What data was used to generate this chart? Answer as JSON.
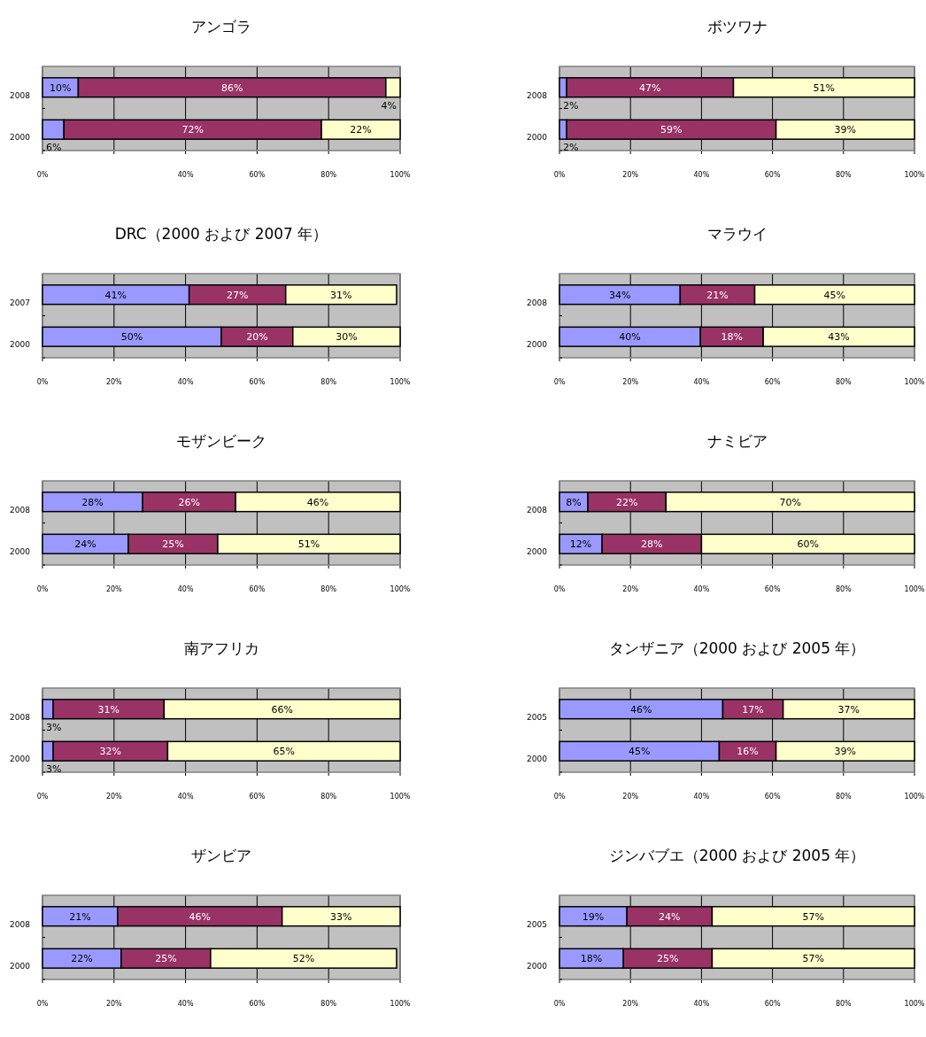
{
  "chart_data": [
    {
      "type": "bar",
      "orientation": "horizontal",
      "stacked": true,
      "grid": "x",
      "title": "アンゴラ",
      "categories": [
        "2008",
        "2000"
      ],
      "xlim": [
        0,
        100
      ],
      "xticks": [
        {
          "value": 0,
          "label": "0%"
        },
        {
          "value": 20,
          "label": null
        },
        {
          "value": 40,
          "label": "40%"
        },
        {
          "value": 60,
          "label": "60%"
        },
        {
          "value": 80,
          "label": "80%"
        },
        {
          "value": 100,
          "label": "100%"
        }
      ],
      "series": [
        {
          "color": "#9999ff",
          "values": [
            10,
            6
          ],
          "value_labels": [
            "10%",
            "6%"
          ]
        },
        {
          "color": "#993366",
          "values": [
            86,
            72
          ],
          "value_labels": [
            "86%",
            "72%"
          ]
        },
        {
          "color": "#ffffcc",
          "values": [
            4,
            22
          ],
          "value_labels": [
            "4%",
            "22%"
          ]
        }
      ]
    },
    {
      "type": "bar",
      "orientation": "horizontal",
      "stacked": true,
      "grid": "x",
      "title": "ボツワナ",
      "categories": [
        "2008",
        "2000"
      ],
      "xlim": [
        0,
        100
      ],
      "xticks": [
        {
          "value": 0,
          "label": "0%"
        },
        {
          "value": 20,
          "label": "20%"
        },
        {
          "value": 40,
          "label": "40%"
        },
        {
          "value": 60,
          "label": "60%"
        },
        {
          "value": 80,
          "label": "80%"
        },
        {
          "value": 100,
          "label": "100%"
        }
      ],
      "series": [
        {
          "color": "#9999ff",
          "values": [
            2,
            2
          ],
          "value_labels": [
            "2%",
            "2%"
          ]
        },
        {
          "color": "#993366",
          "values": [
            47,
            59
          ],
          "value_labels": [
            "47%",
            "59%"
          ]
        },
        {
          "color": "#ffffcc",
          "values": [
            51,
            39
          ],
          "value_labels": [
            "51%",
            "39%"
          ]
        }
      ]
    },
    {
      "type": "bar",
      "orientation": "horizontal",
      "stacked": true,
      "grid": "x",
      "title": "DRC（2000 および 2007 年）",
      "categories": [
        "2007",
        "2000"
      ],
      "xlim": [
        0,
        100
      ],
      "xticks": [
        {
          "value": 0,
          "label": "0%"
        },
        {
          "value": 20,
          "label": "20%"
        },
        {
          "value": 40,
          "label": "40%"
        },
        {
          "value": 60,
          "label": "60%"
        },
        {
          "value": 80,
          "label": "80%"
        },
        {
          "value": 100,
          "label": "100%"
        }
      ],
      "series": [
        {
          "color": "#9999ff",
          "values": [
            41,
            50
          ],
          "value_labels": [
            "41%",
            "50%"
          ]
        },
        {
          "color": "#993366",
          "values": [
            27,
            20
          ],
          "value_labels": [
            "27%",
            "20%"
          ]
        },
        {
          "color": "#ffffcc",
          "values": [
            31,
            30
          ],
          "value_labels": [
            "31%",
            "30%"
          ]
        }
      ]
    },
    {
      "type": "bar",
      "orientation": "horizontal",
      "stacked": true,
      "grid": "x",
      "title": "マラウイ",
      "categories": [
        "2008",
        "2000"
      ],
      "xlim": [
        0,
        100
      ],
      "xticks": [
        {
          "value": 0,
          "label": "0%"
        },
        {
          "value": 20,
          "label": "20%"
        },
        {
          "value": 40,
          "label": "40%"
        },
        {
          "value": 60,
          "label": "60%"
        },
        {
          "value": 80,
          "label": "80%"
        },
        {
          "value": 100,
          "label": "100%"
        }
      ],
      "series": [
        {
          "color": "#9999ff",
          "values": [
            34,
            39.7
          ],
          "value_labels": [
            "34%",
            "40%"
          ]
        },
        {
          "color": "#993366",
          "values": [
            21,
            17.7
          ],
          "value_labels": [
            "21%",
            "18%"
          ]
        },
        {
          "color": "#ffffcc",
          "values": [
            45,
            42.6
          ],
          "value_labels": [
            "45%",
            "43%"
          ]
        }
      ]
    },
    {
      "type": "bar",
      "orientation": "horizontal",
      "stacked": true,
      "grid": "x",
      "title": "モザンビーク",
      "categories": [
        "2008",
        "2000"
      ],
      "xlim": [
        0,
        100
      ],
      "xticks": [
        {
          "value": 0,
          "label": "0%"
        },
        {
          "value": 20,
          "label": "20%"
        },
        {
          "value": 40,
          "label": "40%"
        },
        {
          "value": 60,
          "label": "60%"
        },
        {
          "value": 80,
          "label": "80%"
        },
        {
          "value": 100,
          "label": "100%"
        }
      ],
      "series": [
        {
          "color": "#9999ff",
          "values": [
            28,
            24
          ],
          "value_labels": [
            "28%",
            "24%"
          ]
        },
        {
          "color": "#993366",
          "values": [
            26,
            25
          ],
          "value_labels": [
            "26%",
            "25%"
          ]
        },
        {
          "color": "#ffffcc",
          "values": [
            46,
            51
          ],
          "value_labels": [
            "46%",
            "51%"
          ]
        }
      ]
    },
    {
      "type": "bar",
      "orientation": "horizontal",
      "stacked": true,
      "grid": "x",
      "title": "ナミビア",
      "categories": [
        "2008",
        "2000"
      ],
      "xlim": [
        0,
        100
      ],
      "xticks": [
        {
          "value": 0,
          "label": "0%"
        },
        {
          "value": 20,
          "label": "20%"
        },
        {
          "value": 40,
          "label": "40%"
        },
        {
          "value": 60,
          "label": "60%"
        },
        {
          "value": 80,
          "label": "80%"
        },
        {
          "value": 100,
          "label": "100%"
        }
      ],
      "series": [
        {
          "color": "#9999ff",
          "values": [
            8,
            12
          ],
          "value_labels": [
            "8%",
            "12%"
          ]
        },
        {
          "color": "#993366",
          "values": [
            22,
            28
          ],
          "value_labels": [
            "22%",
            "28%"
          ]
        },
        {
          "color": "#ffffcc",
          "values": [
            70,
            60
          ],
          "value_labels": [
            "70%",
            "60%"
          ]
        }
      ]
    },
    {
      "type": "bar",
      "orientation": "horizontal",
      "stacked": true,
      "grid": "x",
      "title": "南アフリカ",
      "categories": [
        "2008",
        "2000"
      ],
      "xlim": [
        0,
        100
      ],
      "xticks": [
        {
          "value": 0,
          "label": "0%"
        },
        {
          "value": 20,
          "label": "20%"
        },
        {
          "value": 40,
          "label": "40%"
        },
        {
          "value": 60,
          "label": "60%"
        },
        {
          "value": 80,
          "label": "80%"
        },
        {
          "value": 100,
          "label": "100%"
        }
      ],
      "series": [
        {
          "color": "#9999ff",
          "values": [
            3,
            3
          ],
          "value_labels": [
            "3%",
            "3%"
          ]
        },
        {
          "color": "#993366",
          "values": [
            31,
            32
          ],
          "value_labels": [
            "31%",
            "32%"
          ]
        },
        {
          "color": "#ffffcc",
          "values": [
            66,
            65
          ],
          "value_labels": [
            "66%",
            "65%"
          ]
        }
      ]
    },
    {
      "type": "bar",
      "orientation": "horizontal",
      "stacked": true,
      "grid": "x",
      "title": "タンザニア（2000 および 2005 年）",
      "categories": [
        "2005",
        "2000"
      ],
      "xlim": [
        0,
        100
      ],
      "xticks": [
        {
          "value": 0,
          "label": "0%"
        },
        {
          "value": 20,
          "label": "20%"
        },
        {
          "value": 40,
          "label": "40%"
        },
        {
          "value": 60,
          "label": "60%"
        },
        {
          "value": 80,
          "label": "80%"
        },
        {
          "value": 100,
          "label": "100%"
        }
      ],
      "series": [
        {
          "color": "#9999ff",
          "values": [
            46,
            45
          ],
          "value_labels": [
            "46%",
            "45%"
          ]
        },
        {
          "color": "#993366",
          "values": [
            17,
            16
          ],
          "value_labels": [
            "17%",
            "16%"
          ]
        },
        {
          "color": "#ffffcc",
          "values": [
            37,
            39
          ],
          "value_labels": [
            "37%",
            "39%"
          ]
        }
      ]
    },
    {
      "type": "bar",
      "orientation": "horizontal",
      "stacked": true,
      "grid": "x",
      "title": "ザンビア",
      "categories": [
        "2008",
        "2000"
      ],
      "xlim": [
        0,
        100
      ],
      "xticks": [
        {
          "value": 0,
          "label": "0%"
        },
        {
          "value": 20,
          "label": "20%"
        },
        {
          "value": 40,
          "label": "40%"
        },
        {
          "value": 60,
          "label": "60%"
        },
        {
          "value": 80,
          "label": "80%"
        },
        {
          "value": 100,
          "label": "100%"
        }
      ],
      "series": [
        {
          "color": "#9999ff",
          "values": [
            21,
            22
          ],
          "value_labels": [
            "21%",
            "22%"
          ]
        },
        {
          "color": "#993366",
          "values": [
            46,
            25
          ],
          "value_labels": [
            "46%",
            "25%"
          ]
        },
        {
          "color": "#ffffcc",
          "values": [
            33,
            52
          ],
          "value_labels": [
            "33%",
            "52%"
          ]
        }
      ]
    },
    {
      "type": "bar",
      "orientation": "horizontal",
      "stacked": true,
      "grid": "x",
      "title": "ジンバブエ（2000 および 2005 年）",
      "categories": [
        "2005",
        "2000"
      ],
      "xlim": [
        0,
        100
      ],
      "xticks": [
        {
          "value": 0,
          "label": "0%"
        },
        {
          "value": 20,
          "label": "20%"
        },
        {
          "value": 40,
          "label": "40%"
        },
        {
          "value": 60,
          "label": "60%"
        },
        {
          "value": 80,
          "label": "80%"
        },
        {
          "value": 100,
          "label": "100%"
        }
      ],
      "series": [
        {
          "color": "#9999ff",
          "values": [
            19,
            18
          ],
          "value_labels": [
            "19%",
            "18%"
          ]
        },
        {
          "color": "#993366",
          "values": [
            24,
            25
          ],
          "value_labels": [
            "24%",
            "25%"
          ]
        },
        {
          "color": "#ffffcc",
          "values": [
            57,
            57
          ],
          "value_labels": [
            "57%",
            "57%"
          ]
        }
      ]
    }
  ]
}
